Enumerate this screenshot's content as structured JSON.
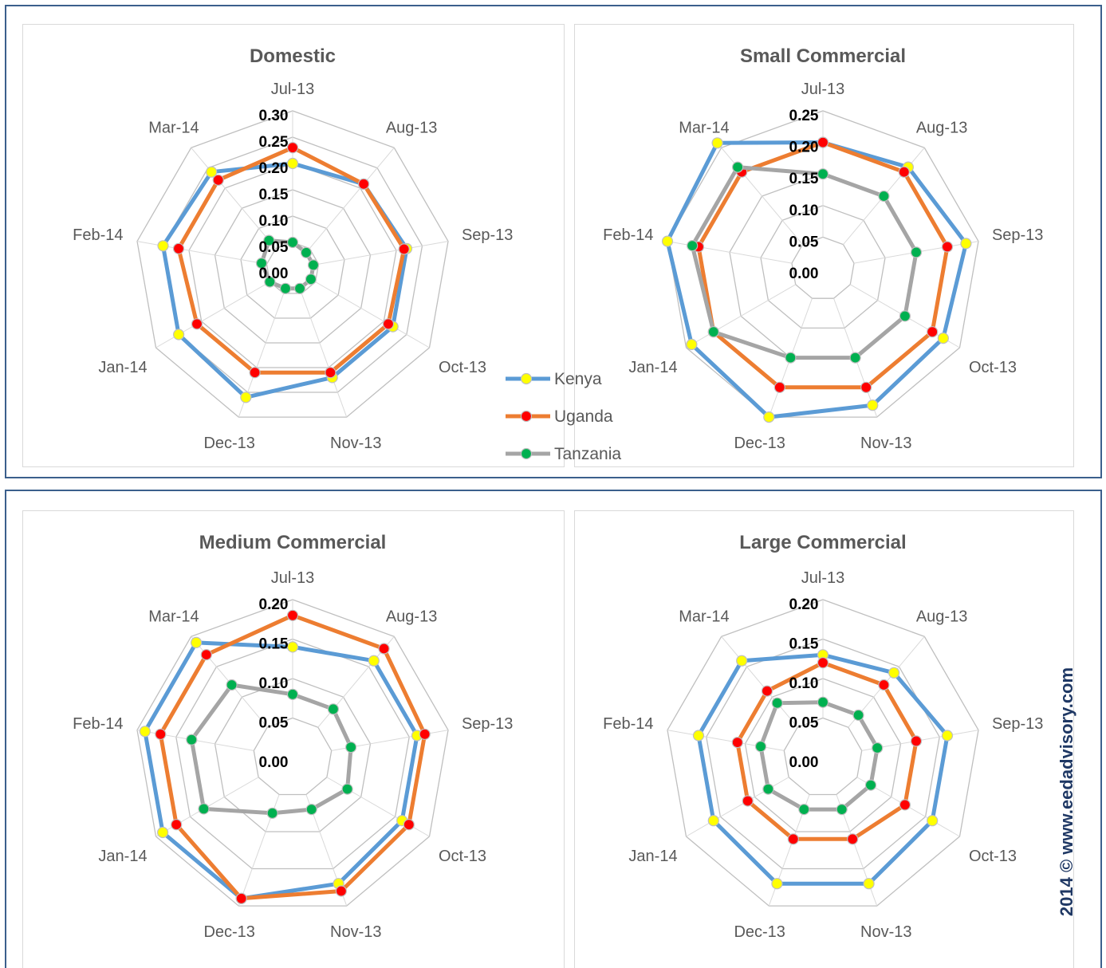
{
  "categories": [
    "Jul-13",
    "Aug-13",
    "Sep-13",
    "Oct-13",
    "Nov-13",
    "Dec-13",
    "Jan-14",
    "Feb-14",
    "Mar-14"
  ],
  "legend": [
    {
      "name": "Kenya",
      "line_color": "#5b9bd5",
      "marker_color": "#ffff00"
    },
    {
      "name": "Uganda",
      "line_color": "#ed7d31",
      "marker_color": "#ff0000"
    },
    {
      "name": "Tanzania",
      "line_color": "#a5a5a5",
      "marker_color": "#00b050"
    }
  ],
  "copyright": "2014 © www.eedadvisory.com",
  "chart_data": [
    {
      "type": "radar",
      "title": "Domestic",
      "categories": [
        "Jul-13",
        "Aug-13",
        "Sep-13",
        "Oct-13",
        "Nov-13",
        "Dec-13",
        "Jan-14",
        "Feb-14",
        "Mar-14"
      ],
      "rlim": [
        0,
        0.3
      ],
      "ticks": [
        "0.00",
        "0.05",
        "0.10",
        "0.15",
        "0.20",
        "0.25",
        "0.30"
      ],
      "series": [
        {
          "name": "Kenya",
          "values": [
            0.2,
            0.21,
            0.22,
            0.22,
            0.22,
            0.26,
            0.25,
            0.25,
            0.24
          ]
        },
        {
          "name": "Uganda",
          "values": [
            0.23,
            0.21,
            0.215,
            0.21,
            0.21,
            0.21,
            0.21,
            0.22,
            0.22
          ]
        },
        {
          "name": "Tanzania",
          "values": [
            0.05,
            0.04,
            0.04,
            0.04,
            0.04,
            0.04,
            0.05,
            0.06,
            0.07
          ]
        }
      ]
    },
    {
      "type": "radar",
      "title": "Small Commercial",
      "categories": [
        "Jul-13",
        "Aug-13",
        "Sep-13",
        "Oct-13",
        "Nov-13",
        "Dec-13",
        "Jan-14",
        "Feb-14",
        "Mar-14"
      ],
      "rlim": [
        0,
        0.25
      ],
      "ticks": [
        "0.00",
        "0.05",
        "0.10",
        "0.15",
        "0.20",
        "0.25"
      ],
      "series": [
        {
          "name": "Kenya",
          "values": [
            0.2,
            0.21,
            0.23,
            0.22,
            0.23,
            0.25,
            0.24,
            0.25,
            0.26
          ]
        },
        {
          "name": "Uganda",
          "values": [
            0.2,
            0.2,
            0.2,
            0.2,
            0.2,
            0.2,
            0.2,
            0.2,
            0.2
          ]
        },
        {
          "name": "Tanzania",
          "values": [
            0.15,
            0.15,
            0.15,
            0.15,
            0.15,
            0.15,
            0.2,
            0.21,
            0.21
          ]
        }
      ]
    },
    {
      "type": "radar",
      "title": "Medium Commercial",
      "categories": [
        "Jul-13",
        "Aug-13",
        "Sep-13",
        "Oct-13",
        "Nov-13",
        "Dec-13",
        "Jan-14",
        "Feb-14",
        "Mar-14"
      ],
      "rlim": [
        0,
        0.2
      ],
      "ticks": [
        "0.00",
        "0.05",
        "0.10",
        "0.15",
        "0.20"
      ],
      "series": [
        {
          "name": "Kenya",
          "values": [
            0.14,
            0.16,
            0.16,
            0.16,
            0.17,
            0.19,
            0.19,
            0.19,
            0.19
          ]
        },
        {
          "name": "Uganda",
          "values": [
            0.18,
            0.18,
            0.17,
            0.17,
            0.18,
            0.19,
            0.17,
            0.17,
            0.17
          ]
        },
        {
          "name": "Tanzania",
          "values": [
            0.08,
            0.08,
            0.075,
            0.08,
            0.07,
            0.075,
            0.13,
            0.13,
            0.12
          ]
        }
      ]
    },
    {
      "type": "radar",
      "title": "Large Commercial",
      "categories": [
        "Jul-13",
        "Aug-13",
        "Sep-13",
        "Oct-13",
        "Nov-13",
        "Dec-13",
        "Jan-14",
        "Feb-14",
        "Mar-14"
      ],
      "rlim": [
        0,
        0.2
      ],
      "ticks": [
        "0.00",
        "0.05",
        "0.10",
        "0.15",
        "0.20"
      ],
      "series": [
        {
          "name": "Kenya",
          "values": [
            0.13,
            0.14,
            0.16,
            0.16,
            0.17,
            0.17,
            0.16,
            0.16,
            0.16
          ]
        },
        {
          "name": "Uganda",
          "values": [
            0.12,
            0.12,
            0.12,
            0.12,
            0.11,
            0.11,
            0.11,
            0.11,
            0.11
          ]
        },
        {
          "name": "Tanzania",
          "values": [
            0.07,
            0.07,
            0.07,
            0.07,
            0.07,
            0.07,
            0.08,
            0.08,
            0.09
          ]
        }
      ]
    }
  ]
}
